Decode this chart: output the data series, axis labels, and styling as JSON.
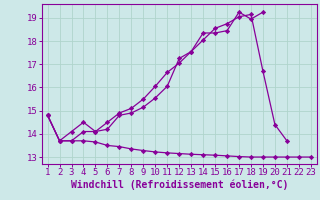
{
  "xlabel": "Windchill (Refroidissement éolien,°C)",
  "background_color": "#cde8e8",
  "grid_color": "#b0d4cc",
  "line_color": "#880099",
  "spine_color": "#880099",
  "x": [
    1,
    2,
    3,
    4,
    5,
    6,
    7,
    8,
    9,
    10,
    11,
    12,
    13,
    14,
    15,
    16,
    17,
    18,
    19,
    20,
    21,
    22,
    23
  ],
  "line1": [
    14.8,
    13.7,
    13.7,
    14.1,
    14.1,
    14.2,
    14.8,
    14.9,
    15.15,
    15.55,
    16.05,
    17.25,
    17.55,
    18.35,
    18.35,
    18.45,
    19.25,
    18.95,
    19.25,
    null,
    null,
    null,
    null
  ],
  "line2": [
    14.8,
    13.7,
    14.1,
    14.5,
    14.1,
    14.5,
    14.9,
    15.1,
    15.5,
    16.05,
    16.65,
    17.05,
    17.55,
    18.05,
    18.55,
    18.75,
    19.05,
    19.15,
    16.7,
    14.4,
    13.7,
    null,
    null
  ],
  "line3": [
    14.8,
    13.7,
    13.7,
    13.7,
    13.65,
    13.5,
    13.45,
    13.35,
    13.28,
    13.22,
    13.18,
    13.15,
    13.12,
    13.1,
    13.08,
    13.05,
    13.02,
    13.0,
    13.0,
    13.0,
    13.0,
    13.0,
    13.0
  ],
  "ylim": [
    12.7,
    19.6
  ],
  "xlim": [
    0.5,
    23.5
  ],
  "yticks": [
    13,
    14,
    15,
    16,
    17,
    18,
    19
  ],
  "xticks": [
    1,
    2,
    3,
    4,
    5,
    6,
    7,
    8,
    9,
    10,
    11,
    12,
    13,
    14,
    15,
    16,
    17,
    18,
    19,
    20,
    21,
    22,
    23
  ],
  "tick_fontsize": 6.5,
  "xlabel_fontsize": 7.0
}
